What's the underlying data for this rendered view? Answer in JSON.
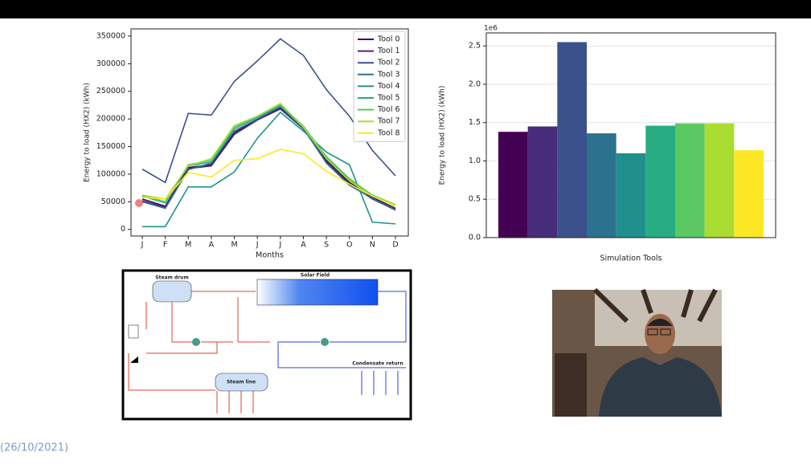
{
  "chart_data": [
    {
      "type": "line",
      "xlabel": "Months",
      "ylabel": "Energy to load (HX2) (kWh)",
      "categories": [
        "J",
        "F",
        "M",
        "A",
        "M",
        "J",
        "J",
        "A",
        "S",
        "O",
        "N",
        "D"
      ],
      "ylim": [
        -12000,
        363000
      ],
      "yticks": [
        0,
        50000,
        100000,
        150000,
        200000,
        250000,
        300000,
        350000
      ],
      "legend": "upper right",
      "grid": false,
      "series": [
        {
          "name": "Tool 0",
          "color": "#440154",
          "values": [
            55000,
            42000,
            112000,
            117000,
            175000,
            200000,
            220000,
            185000,
            125000,
            85000,
            58000,
            38000
          ]
        },
        {
          "name": "Tool 1",
          "color": "#472c7a",
          "values": [
            52000,
            40000,
            110000,
            115000,
            172000,
            198000,
            218000,
            182000,
            122000,
            82000,
            55000,
            35000
          ]
        },
        {
          "name": "Tool 2",
          "color": "#3b518b",
          "values": [
            109000,
            85000,
            210000,
            207000,
            268000,
            305000,
            345000,
            315000,
            253000,
            205000,
            143000,
            97000
          ]
        },
        {
          "name": "Tool 3",
          "color": "#2c718e",
          "values": [
            50000,
            38000,
            108000,
            120000,
            178000,
            200000,
            222000,
            183000,
            120000,
            80000,
            56000,
            36000
          ]
        },
        {
          "name": "Tool 4",
          "color": "#21908d",
          "values": [
            5000,
            5000,
            77000,
            77000,
            104000,
            165000,
            212000,
            178000,
            140000,
            117000,
            13000,
            10000
          ]
        },
        {
          "name": "Tool 5",
          "color": "#27ad81",
          "values": [
            60000,
            48000,
            115000,
            122000,
            182000,
            203000,
            224000,
            185000,
            130000,
            90000,
            60000,
            42000
          ]
        },
        {
          "name": "Tool 6",
          "color": "#5cc863",
          "values": [
            62000,
            50000,
            117000,
            125000,
            185000,
            205000,
            226000,
            187000,
            132000,
            92000,
            62000,
            45000
          ]
        },
        {
          "name": "Tool 7",
          "color": "#aadc32",
          "values": [
            62000,
            55000,
            115000,
            128000,
            188000,
            205000,
            228000,
            185000,
            128000,
            88000,
            60000,
            45000
          ]
        },
        {
          "name": "Tool 8",
          "color": "#fde725",
          "values": [
            58000,
            55000,
            103000,
            95000,
            125000,
            128000,
            145000,
            137000,
            105000,
            82000,
            60000,
            42000
          ]
        }
      ]
    },
    {
      "type": "bar",
      "xlabel": "Simulation Tools",
      "ylabel": "Energy to load (HX2) (kWh)",
      "offset_label": "1e6",
      "values": [
        1.38,
        1.45,
        2.55,
        1.36,
        1.1,
        1.46,
        1.49,
        1.49,
        1.14
      ],
      "colors": [
        "#440154",
        "#472c7a",
        "#3b518b",
        "#2c718e",
        "#21908d",
        "#27ad81",
        "#5cc863",
        "#aadc32",
        "#fde725"
      ],
      "ylim": [
        0,
        2.67
      ],
      "yticks": [
        {
          "value": 0,
          "label": "0.0"
        },
        0.5,
        {
          "value": 1,
          "label": "1.0"
        },
        1.5,
        {
          "value": 2,
          "label": "2.0"
        },
        2.5
      ],
      "grid": true
    }
  ],
  "diagram": {
    "labels": [
      "Steam drum",
      "Solar Field",
      "Steam line",
      "Condensate return"
    ]
  },
  "footer": {
    "date": "(26/10/2021)"
  }
}
